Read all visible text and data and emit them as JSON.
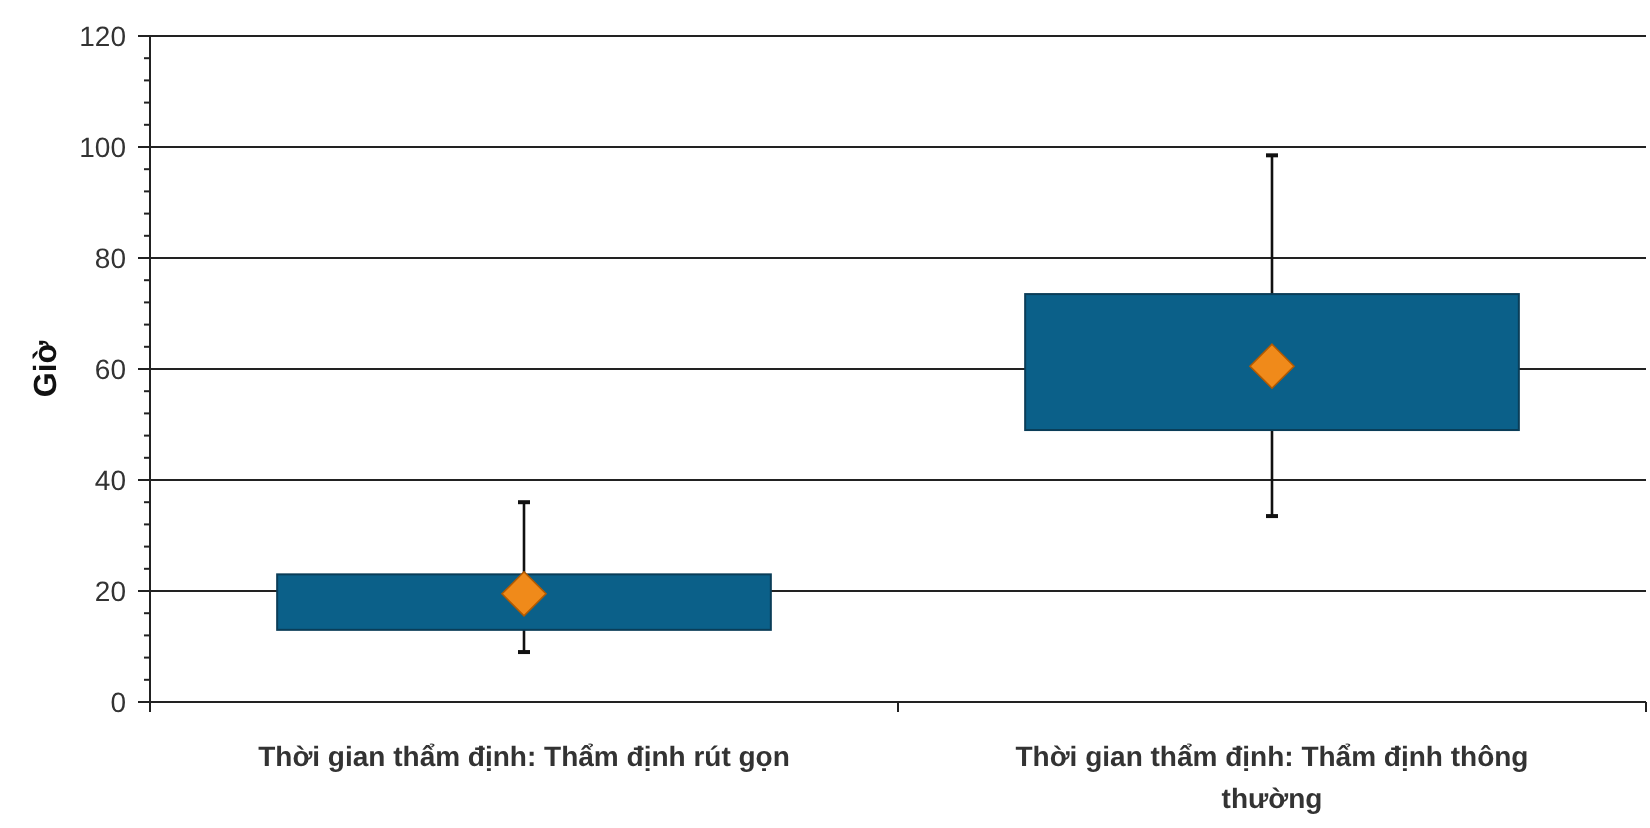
{
  "chart_data": {
    "type": "box",
    "ylabel": "Giờ",
    "categories": [
      "Thời gian thẩm định: Thẩm định rút gọn",
      "Thời gian thẩm định: Thẩm định thông thường"
    ],
    "boxes": [
      {
        "low": 9,
        "q1": 13,
        "q3": 23,
        "high": 36,
        "mean": 19.5
      },
      {
        "low": 33.5,
        "q1": 49,
        "q3": 73.5,
        "high": 98.5,
        "mean": 60.5
      }
    ],
    "color": "#0b6089",
    "ylim": [
      0,
      120
    ],
    "yticks": [
      0,
      {
        "value": 4,
        "label": null
      },
      {
        "value": 8,
        "label": null
      },
      {
        "value": 12,
        "label": null
      },
      {
        "value": 16,
        "label": null
      },
      20,
      {
        "value": 24,
        "label": null
      },
      {
        "value": 28,
        "label": null
      },
      {
        "value": 32,
        "label": null
      },
      {
        "value": 36,
        "label": null
      },
      40,
      {
        "value": 44,
        "label": null
      },
      {
        "value": 48,
        "label": null
      },
      {
        "value": 52,
        "label": null
      },
      {
        "value": 56,
        "label": null
      },
      60,
      {
        "value": 64,
        "label": null
      },
      {
        "value": 68,
        "label": null
      },
      {
        "value": 72,
        "label": null
      },
      {
        "value": 76,
        "label": null
      },
      80,
      {
        "value": 84,
        "label": null
      },
      {
        "value": 88,
        "label": null
      },
      {
        "value": 92,
        "label": null
      },
      {
        "value": 96,
        "label": null
      },
      100,
      {
        "value": 104,
        "label": null
      },
      {
        "value": 108,
        "label": null
      },
      {
        "value": 112,
        "label": null
      },
      {
        "value": 116,
        "label": null
      },
      120
    ],
    "grid": "y",
    "marker": "diamond"
  }
}
